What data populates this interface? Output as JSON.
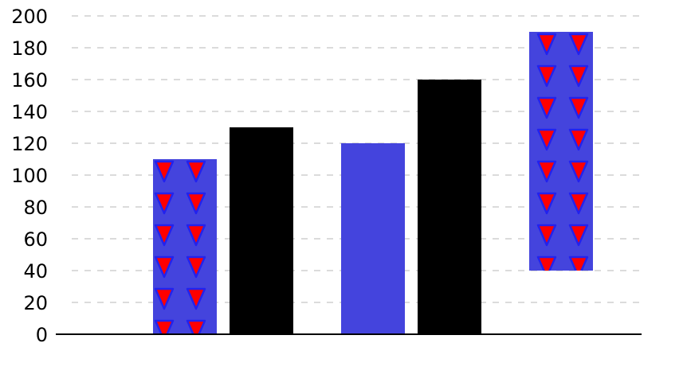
{
  "chart_data": {
    "type": "bar",
    "title": "",
    "xlabel": "",
    "ylabel": "",
    "ylim": [
      0,
      200
    ],
    "y_ticks": [
      0,
      20,
      40,
      60,
      80,
      100,
      120,
      140,
      160,
      180,
      200
    ],
    "grid": "horizontal dashed",
    "legend": "none",
    "bars": [
      {
        "base": 0,
        "top": 110,
        "color": "#4444dd",
        "pattern": "red-triangles"
      },
      {
        "base": 0,
        "top": 130,
        "color": "#000000",
        "pattern": "none"
      },
      {
        "base": 0,
        "top": 120,
        "color": "#4444dd",
        "pattern": "none"
      },
      {
        "base": 0,
        "top": 160,
        "color": "#000000",
        "pattern": "none"
      },
      {
        "base": 40,
        "top": 190,
        "color": "#4444dd",
        "pattern": "red-triangles"
      }
    ],
    "colors": {
      "blue": "#4444dd",
      "black": "#000000",
      "triangle_fill": "#ff0000",
      "triangle_stroke": "#2222ee"
    }
  }
}
